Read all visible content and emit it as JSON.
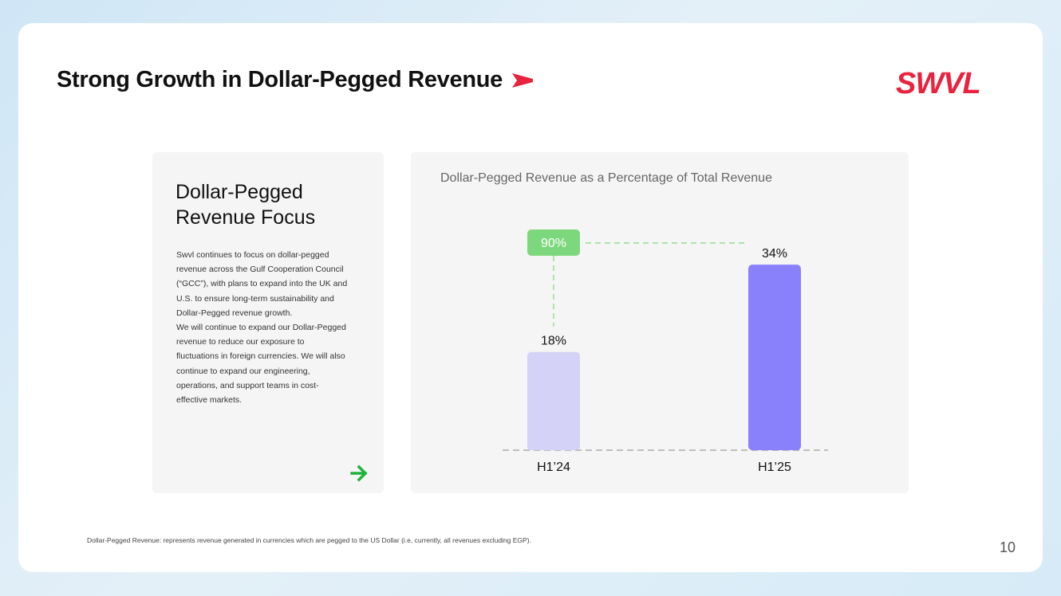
{
  "title": "Strong Growth in Dollar-Pegged Revenue",
  "logo": "SWVL",
  "left_card": {
    "heading": "Dollar-Pegged Revenue Focus",
    "paragraph_1": "Swvl continues to focus on dollar-pegged revenue across the Gulf Cooperation Council (“GCC”), with plans to expand into the UK and U.S. to ensure long-term sustainability and Dollar-Pegged revenue growth.",
    "paragraph_2": "We will continue to expand our Dollar-Pegged revenue to reduce our exposure to fluctuations in foreign currencies. We will also continue to expand our engineering, operations, and support teams in cost-effective markets."
  },
  "chart_data": {
    "type": "bar",
    "title": "Dollar-Pegged Revenue as a Percentage of Total Revenue",
    "categories": [
      "H1’24",
      "H1’25"
    ],
    "values": [
      18,
      34
    ],
    "value_labels": [
      "18%",
      "34%"
    ],
    "ylim": [
      0,
      40
    ],
    "grid": false,
    "growth_label": "90%",
    "colors": [
      "#d4d2f6",
      "#8981fc"
    ],
    "growth_color": "#7dd87d"
  },
  "footnote": "Dollar-Pegged Revenue: represents revenue generated in currencies which are pegged to the US Dollar (i.e, currently, all revenues excluding EGP).",
  "page_number": "10",
  "colors": {
    "brand": "#e8233e",
    "arrow": "#1fb33b"
  }
}
